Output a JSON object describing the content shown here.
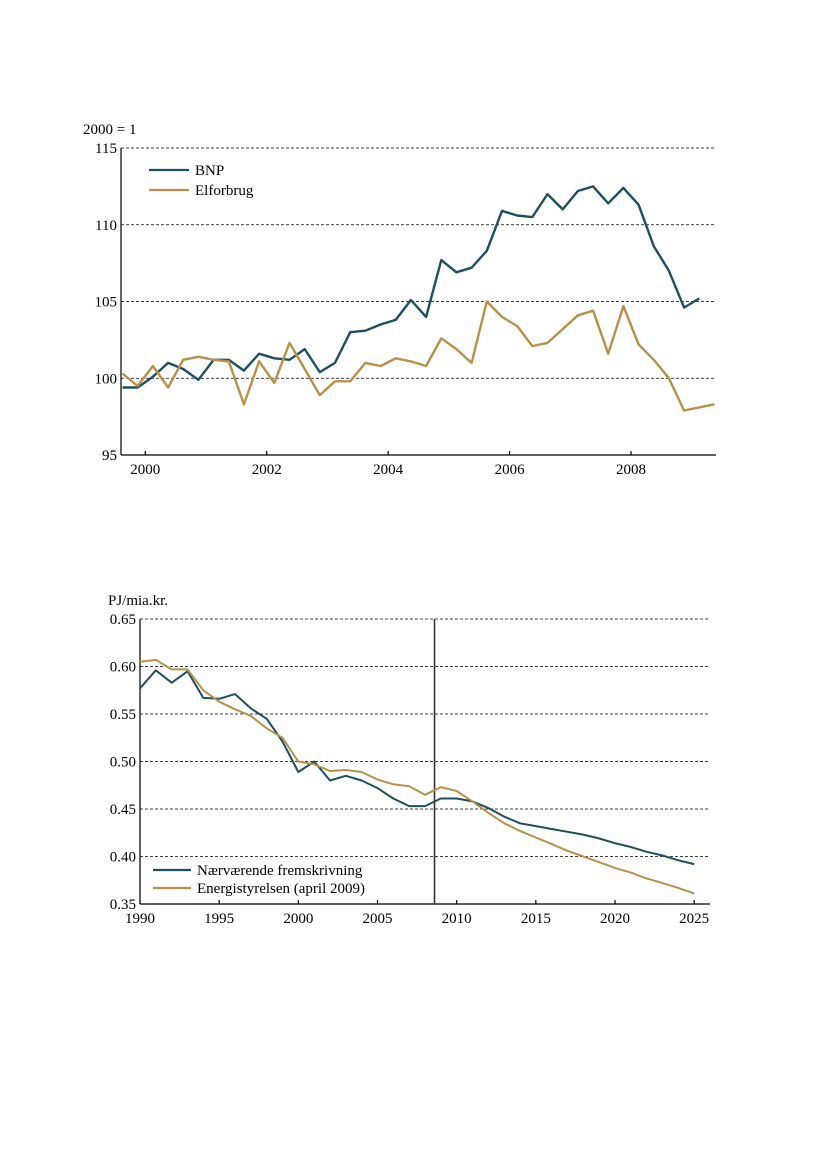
{
  "chart_data": [
    {
      "type": "line",
      "unit_label": "2000 = 1",
      "ylim": [
        95,
        115
      ],
      "yticks": [
        95,
        100,
        105,
        110,
        115
      ],
      "xlim": [
        1999.6,
        2009.4
      ],
      "xticks": [
        2000,
        2002,
        2004,
        2006,
        2008
      ],
      "grid": "horizontal dashed",
      "legend_position": "top-left",
      "series": [
        {
          "name": "BNP",
          "color": "#1d4e63",
          "x": [
            1999.625,
            1999.875,
            2000.125,
            2000.375,
            2000.625,
            2000.875,
            2001.125,
            2001.375,
            2001.625,
            2001.875,
            2002.125,
            2002.375,
            2002.625,
            2002.875,
            2003.125,
            2003.375,
            2003.625,
            2003.875,
            2004.125,
            2004.375,
            2004.625,
            2004.875,
            2005.125,
            2005.375,
            2005.625,
            2005.875,
            2006.125,
            2006.375,
            2006.625,
            2006.875,
            2007.125,
            2007.375,
            2007.625,
            2007.875,
            2008.125,
            2008.375,
            2008.625,
            2008.875,
            2009.125
          ],
          "values": [
            99.4,
            99.4,
            100.1,
            101.0,
            100.6,
            99.9,
            101.2,
            101.2,
            100.5,
            101.6,
            101.3,
            101.2,
            101.9,
            100.4,
            101.0,
            103.0,
            103.1,
            103.5,
            103.8,
            105.1,
            104.0,
            107.7,
            106.9,
            107.2,
            108.3,
            110.9,
            110.6,
            110.5,
            112.0,
            111.0,
            112.2,
            112.5,
            111.4,
            112.4,
            111.3,
            108.6,
            107.0,
            104.6,
            105.2
          ]
        },
        {
          "name": "Elforbrug",
          "color": "#b8904a",
          "x": [
            1999.625,
            1999.875,
            2000.125,
            2000.375,
            2000.625,
            2000.875,
            2001.125,
            2001.375,
            2001.625,
            2001.875,
            2002.125,
            2002.375,
            2002.625,
            2002.875,
            2003.125,
            2003.375,
            2003.625,
            2003.875,
            2004.125,
            2004.375,
            2004.625,
            2004.875,
            2005.125,
            2005.375,
            2005.625,
            2005.875,
            2006.125,
            2006.375,
            2006.625,
            2006.875,
            2007.125,
            2007.375,
            2007.625,
            2007.875,
            2008.125,
            2008.375,
            2008.625,
            2008.875,
            2009.125,
            2009.375
          ],
          "values": [
            100.3,
            99.5,
            100.8,
            99.4,
            101.2,
            101.4,
            101.2,
            101.1,
            98.3,
            101.1,
            99.7,
            102.3,
            100.6,
            98.9,
            99.8,
            99.8,
            101.0,
            100.8,
            101.3,
            101.1,
            100.8,
            102.6,
            101.9,
            101.0,
            105.0,
            104.0,
            103.4,
            102.1,
            102.3,
            103.2,
            104.1,
            104.4,
            101.6,
            104.7,
            102.2,
            101.2,
            100.0,
            97.9,
            98.1,
            98.3
          ]
        }
      ]
    },
    {
      "type": "line",
      "unit_label": "PJ/mia.kr.",
      "ylim": [
        0.35,
        0.65
      ],
      "yticks": [
        "0.35",
        "0.40",
        "0.45",
        "0.50",
        "0.55",
        "0.60",
        "0.65"
      ],
      "xlim": [
        1990,
        2026
      ],
      "xticks": [
        1990,
        1995,
        2000,
        2005,
        2010,
        2015,
        2020,
        2025
      ],
      "vertical_marker_x": 2008.6,
      "grid": "horizontal dashed",
      "legend_position": "bottom-left",
      "series": [
        {
          "name": "Nærværende fremskrivning",
          "color": "#1d4e63",
          "x": [
            1990,
            1991,
            1992,
            1993,
            1994,
            1995,
            1996,
            1997,
            1998,
            1999,
            2000,
            2001,
            2002,
            2003,
            2004,
            2005,
            2006,
            2007,
            2008,
            2009,
            2010,
            2011,
            2012,
            2013,
            2014,
            2015,
            2016,
            2017,
            2018,
            2019,
            2020,
            2021,
            2022,
            2023,
            2024,
            2025
          ],
          "values": [
            0.577,
            0.596,
            0.583,
            0.595,
            0.567,
            0.566,
            0.571,
            0.556,
            0.545,
            0.521,
            0.489,
            0.5,
            0.48,
            0.485,
            0.48,
            0.472,
            0.461,
            0.453,
            0.453,
            0.461,
            0.461,
            0.458,
            0.451,
            0.442,
            0.435,
            0.432,
            0.429,
            0.426,
            0.423,
            0.419,
            0.414,
            0.41,
            0.405,
            0.401,
            0.396,
            0.392
          ]
        },
        {
          "name": "Energistyrelsen (april 2009)",
          "color": "#b8904a",
          "x": [
            1990,
            1991,
            1992,
            1993,
            1994,
            1995,
            1996,
            1997,
            1998,
            1999,
            2000,
            2001,
            2002,
            2003,
            2004,
            2005,
            2006,
            2007,
            2008,
            2009,
            2010,
            2011,
            2012,
            2013,
            2014,
            2015,
            2016,
            2017,
            2018,
            2019,
            2020,
            2021,
            2022,
            2023,
            2024,
            2025
          ],
          "values": [
            0.605,
            0.607,
            0.597,
            0.597,
            0.575,
            0.563,
            0.555,
            0.548,
            0.535,
            0.525,
            0.5,
            0.497,
            0.49,
            0.491,
            0.489,
            0.481,
            0.476,
            0.474,
            0.465,
            0.473,
            0.469,
            0.458,
            0.446,
            0.435,
            0.427,
            0.42,
            0.413,
            0.406,
            0.4,
            0.394,
            0.388,
            0.383,
            0.377,
            0.372,
            0.367,
            0.361
          ]
        }
      ]
    }
  ]
}
